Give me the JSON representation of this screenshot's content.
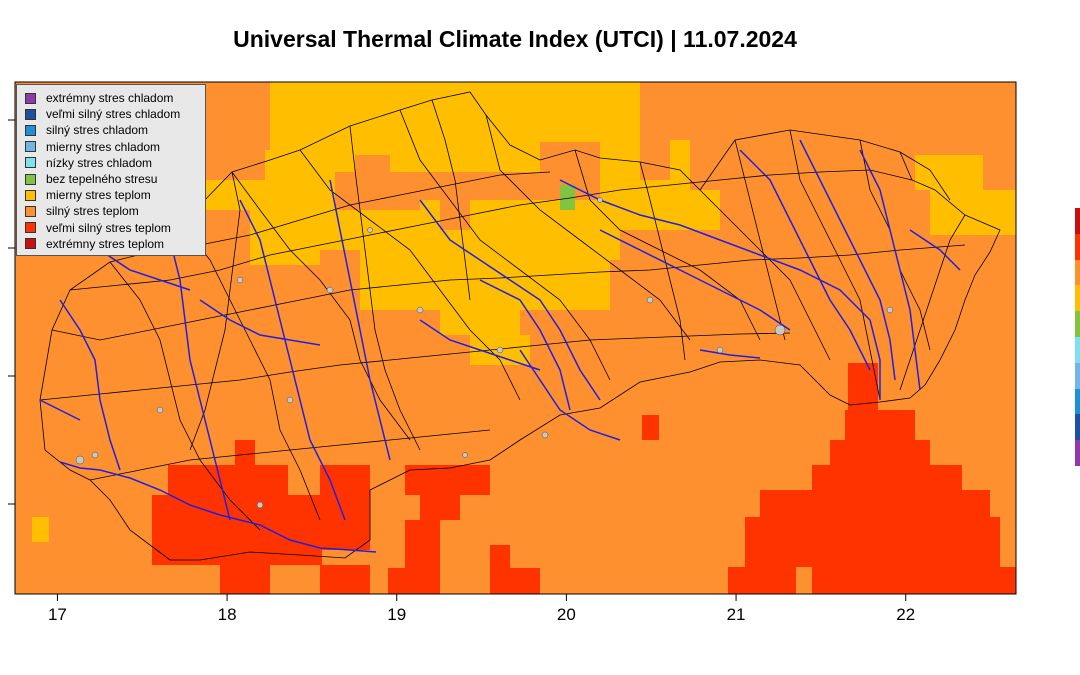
{
  "title": "Universal Thermal Climate Index (UTCI) | 11.07.2024",
  "legend": [
    {
      "label": "extrémny stres chladom",
      "color": "#8e3aa8"
    },
    {
      "label": "veľmi silný stres chladom",
      "color": "#1f4fa0"
    },
    {
      "label": "silný stres chladom",
      "color": "#1e90d6"
    },
    {
      "label": "mierny stres chladom",
      "color": "#74b4e6"
    },
    {
      "label": "nízky stres chladom",
      "color": "#7fe0f0"
    },
    {
      "label": "bez tepelného stresu",
      "color": "#82c341"
    },
    {
      "label": "mierny stres teplom",
      "color": "#ffbf00"
    },
    {
      "label": "silný stres teplom",
      "color": "#ff9030"
    },
    {
      "label": "veľmi silný stres teplom",
      "color": "#ff3300"
    },
    {
      "label": "extrémny stres teplom",
      "color": "#c81010"
    }
  ],
  "map_data": {
    "x_ticks": [
      "17",
      "18",
      "19",
      "20",
      "21",
      "22"
    ],
    "x_values": [
      17,
      18,
      19,
      20,
      21,
      22
    ],
    "x_range": [
      16.75,
      22.65
    ],
    "y_tick_count": 4,
    "base_class": "silný stres teplom",
    "colors": {
      "bez tepelného stresu": "#82c341",
      "mierny stres teplom": "#ffbf00",
      "silný stres teplom": "#ff9030",
      "veľmi silný stres teplom": "#ff3300",
      "background": "#ff9030",
      "river": "#2020e0",
      "border": "#000000",
      "lake": "#c8c8c8"
    }
  }
}
